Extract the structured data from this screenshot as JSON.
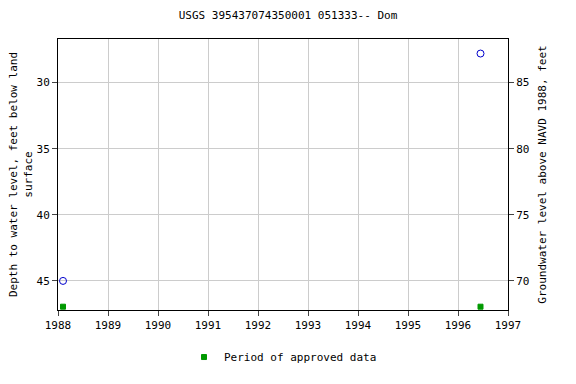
{
  "chart_data": {
    "type": "scatter",
    "title": "USGS 395437074350001 051333-- Dom",
    "xlabel": null,
    "ylabel": [
      "Depth to water level, feet below land",
      "surface"
    ],
    "y2label": "Groundwater level above NAVD 1988, feet",
    "x": [
      1988.1,
      1996.45
    ],
    "series": [
      {
        "values": [
          45.0,
          27.8
        ],
        "color": "#0000cc",
        "marker": "circle-open"
      },
      {
        "name": "Period of approved data",
        "values": [
          46.95,
          46.95
        ],
        "color": "#009900",
        "marker": "square"
      }
    ],
    "xlim": [
      1988,
      1997
    ],
    "xticks": [
      1988,
      1989,
      1990,
      1991,
      1992,
      1993,
      1994,
      1995,
      1996,
      1997
    ],
    "ylim": [
      47.2,
      26.7
    ],
    "yticks": [
      30,
      35,
      40,
      45
    ],
    "y2lim": [
      67.8,
      88.3
    ],
    "y2ticks": [
      70,
      75,
      80,
      85
    ],
    "grid": true,
    "legend": "bottom"
  }
}
